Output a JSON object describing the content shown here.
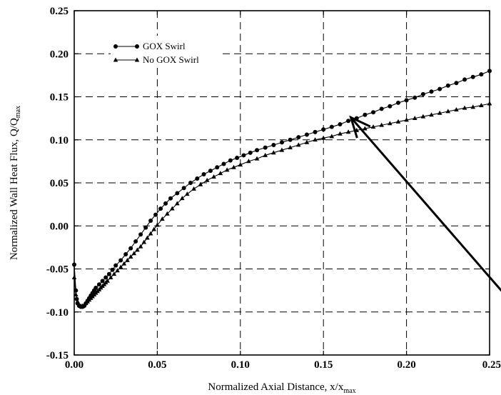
{
  "chart_data": {
    "type": "line",
    "xlabel": "Normalized Axial Distance, x/x",
    "xlabel_sub": "max",
    "ylabel": "Normalized Wall Heat Flux, Q/Q",
    "ylabel_sub": "max",
    "xlim": [
      0,
      0.25
    ],
    "ylim": [
      -0.15,
      0.25
    ],
    "xticks": [
      "0.00",
      "0.05",
      "0.10",
      "0.15",
      "0.20",
      "0.25"
    ],
    "yticks": [
      "-0.15",
      "-0.10",
      "-0.05",
      "0.00",
      "0.05",
      "0.10",
      "0.15",
      "0.20",
      "0.25"
    ],
    "grid": true,
    "legend_position": "top-left",
    "series": [
      {
        "name": "GOX Swirl",
        "marker": "circle",
        "x": [
          0.0,
          0.001,
          0.0015,
          0.002,
          0.003,
          0.004,
          0.005,
          0.006,
          0.007,
          0.008,
          0.009,
          0.01,
          0.011,
          0.012,
          0.013,
          0.015,
          0.017,
          0.019,
          0.021,
          0.023,
          0.025,
          0.028,
          0.031,
          0.034,
          0.037,
          0.04,
          0.043,
          0.046,
          0.049,
          0.052,
          0.055,
          0.058,
          0.062,
          0.066,
          0.07,
          0.074,
          0.078,
          0.082,
          0.086,
          0.09,
          0.094,
          0.098,
          0.102,
          0.106,
          0.11,
          0.115,
          0.12,
          0.125,
          0.13,
          0.135,
          0.14,
          0.145,
          0.15,
          0.155,
          0.16,
          0.165,
          0.17,
          0.175,
          0.18,
          0.185,
          0.19,
          0.195,
          0.2,
          0.205,
          0.21,
          0.215,
          0.22,
          0.225,
          0.23,
          0.235,
          0.24,
          0.245,
          0.25
        ],
        "y": [
          -0.045,
          -0.075,
          -0.085,
          -0.09,
          -0.093,
          -0.094,
          -0.094,
          -0.093,
          -0.09,
          -0.087,
          -0.084,
          -0.081,
          -0.078,
          -0.075,
          -0.072,
          -0.068,
          -0.064,
          -0.06,
          -0.056,
          -0.051,
          -0.046,
          -0.04,
          -0.033,
          -0.026,
          -0.018,
          -0.01,
          -0.002,
          0.006,
          0.013,
          0.02,
          0.026,
          0.032,
          0.038,
          0.044,
          0.05,
          0.055,
          0.06,
          0.064,
          0.068,
          0.072,
          0.076,
          0.079,
          0.082,
          0.085,
          0.088,
          0.091,
          0.094,
          0.097,
          0.1,
          0.103,
          0.106,
          0.109,
          0.112,
          0.115,
          0.118,
          0.122,
          0.125,
          0.129,
          0.132,
          0.136,
          0.139,
          0.143,
          0.146,
          0.149,
          0.153,
          0.156,
          0.159,
          0.163,
          0.166,
          0.17,
          0.173,
          0.176,
          0.18
        ]
      },
      {
        "name": "No GOX Swirl",
        "marker": "triangle",
        "x": [
          0.0,
          0.001,
          0.002,
          0.003,
          0.004,
          0.005,
          0.006,
          0.007,
          0.008,
          0.009,
          0.01,
          0.011,
          0.012,
          0.013,
          0.014,
          0.015,
          0.016,
          0.017,
          0.018,
          0.019,
          0.02,
          0.022,
          0.024,
          0.026,
          0.028,
          0.03,
          0.032,
          0.034,
          0.036,
          0.038,
          0.04,
          0.042,
          0.044,
          0.046,
          0.048,
          0.05,
          0.053,
          0.056,
          0.059,
          0.062,
          0.065,
          0.068,
          0.072,
          0.076,
          0.08,
          0.084,
          0.088,
          0.092,
          0.096,
          0.1,
          0.105,
          0.11,
          0.115,
          0.12,
          0.125,
          0.13,
          0.135,
          0.14,
          0.145,
          0.15,
          0.155,
          0.16,
          0.165,
          0.17,
          0.175,
          0.18,
          0.185,
          0.19,
          0.195,
          0.2,
          0.205,
          0.21,
          0.215,
          0.22,
          0.225,
          0.23,
          0.235,
          0.24,
          0.245,
          0.25
        ],
        "y": [
          -0.06,
          -0.08,
          -0.088,
          -0.092,
          -0.093,
          -0.093,
          -0.092,
          -0.09,
          -0.088,
          -0.086,
          -0.084,
          -0.082,
          -0.08,
          -0.078,
          -0.076,
          -0.074,
          -0.072,
          -0.07,
          -0.068,
          -0.066,
          -0.064,
          -0.06,
          -0.056,
          -0.052,
          -0.048,
          -0.044,
          -0.04,
          -0.036,
          -0.032,
          -0.028,
          -0.024,
          -0.019,
          -0.014,
          -0.009,
          -0.004,
          0.001,
          0.008,
          0.014,
          0.02,
          0.026,
          0.032,
          0.037,
          0.043,
          0.048,
          0.053,
          0.057,
          0.061,
          0.065,
          0.068,
          0.071,
          0.075,
          0.078,
          0.082,
          0.085,
          0.088,
          0.091,
          0.094,
          0.097,
          0.1,
          0.102,
          0.104,
          0.107,
          0.109,
          0.111,
          0.113,
          0.115,
          0.117,
          0.119,
          0.121,
          0.123,
          0.125,
          0.127,
          0.129,
          0.131,
          0.133,
          0.135,
          0.137,
          0.138,
          0.14,
          0.142
        ]
      }
    ],
    "annotations": [
      {
        "type": "arrow",
        "from": [
          0.275,
          -0.115
        ],
        "to": [
          0.1665,
          0.126
        ]
      }
    ]
  }
}
